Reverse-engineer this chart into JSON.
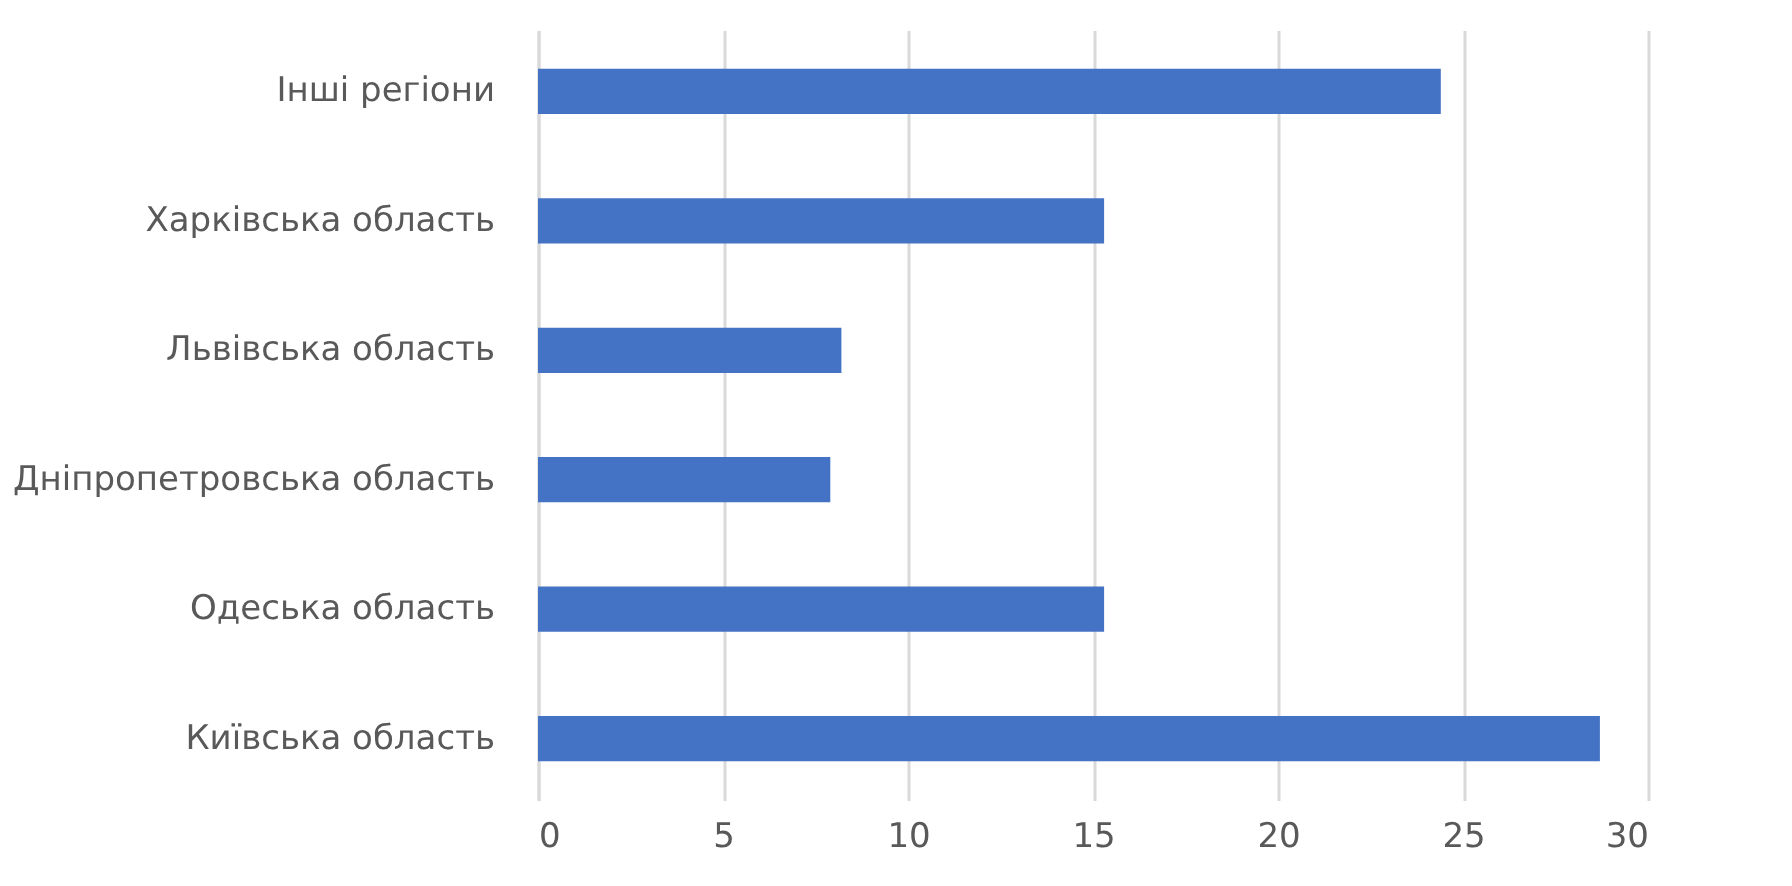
{
  "chart_data": {
    "type": "bar",
    "orientation": "horizontal",
    "categories": [
      "Інші регіони",
      "Харківська область",
      "Львівська область",
      "Дніпропетровська область",
      "Одеська область",
      "Київська область"
    ],
    "values": [
      24.4,
      15.3,
      8.2,
      7.9,
      15.3,
      28.7
    ],
    "color": "#4472c4",
    "xlim": [
      0,
      30
    ],
    "xticks": [
      0,
      5,
      10,
      15,
      20,
      25,
      30
    ],
    "grid": "x"
  }
}
